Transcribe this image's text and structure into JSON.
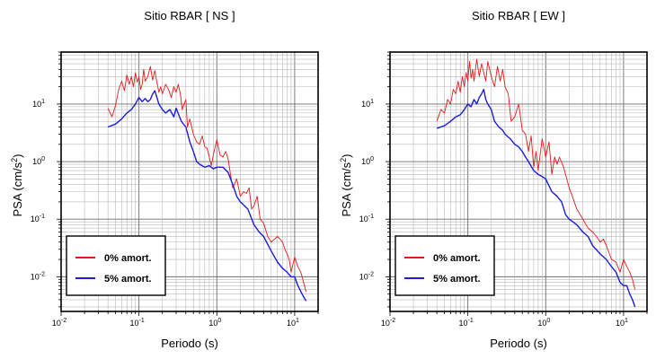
{
  "chart_data": [
    {
      "type": "line",
      "title": "Sitio RBAR [ NS ]",
      "xlabel": "Periodo (s)",
      "ylabel": "PSA (cm/s",
      "ylabel_sup": "2",
      "ylabel_close": ")",
      "xscale": "log",
      "yscale": "log",
      "xlim": [
        0.01,
        20
      ],
      "ylim": [
        0.0025,
        80
      ],
      "grid": true,
      "legend_position": "bottom-left",
      "xticks": [
        {
          "base": "10",
          "exp": "-2",
          "value": 0.01
        },
        {
          "base": "10",
          "exp": "-1",
          "value": 0.1
        },
        {
          "base": "10",
          "exp": "0",
          "value": 1
        },
        {
          "base": "10",
          "exp": "1",
          "value": 10
        }
      ],
      "yticks": [
        {
          "base": "10",
          "exp": "-2",
          "value": 0.01
        },
        {
          "base": "10",
          "exp": "-1",
          "value": 0.1
        },
        {
          "base": "10",
          "exp": "0",
          "value": 1
        },
        {
          "base": "10",
          "exp": "1",
          "value": 10
        }
      ],
      "series": [
        {
          "name": "0% amort.",
          "color": "#e8191b",
          "x": [
            0.04,
            0.045,
            0.05,
            0.055,
            0.06,
            0.065,
            0.07,
            0.075,
            0.08,
            0.085,
            0.09,
            0.095,
            0.1,
            0.105,
            0.11,
            0.115,
            0.12,
            0.13,
            0.14,
            0.15,
            0.16,
            0.17,
            0.18,
            0.19,
            0.2,
            0.22,
            0.24,
            0.26,
            0.28,
            0.3,
            0.32,
            0.34,
            0.36,
            0.38,
            0.4,
            0.42,
            0.45,
            0.5,
            0.55,
            0.6,
            0.65,
            0.7,
            0.75,
            0.8,
            0.85,
            0.9,
            1.0,
            1.1,
            1.2,
            1.3,
            1.4,
            1.5,
            1.6,
            1.8,
            2.0,
            2.2,
            2.4,
            2.6,
            2.8,
            3.0,
            3.3,
            3.6,
            4.0,
            4.5,
            5.0,
            5.5,
            6.0,
            6.5,
            7.0,
            7.5,
            8.0,
            8.5,
            9.0,
            10.0,
            11.0,
            12.0,
            13.0,
            14.0
          ],
          "y": [
            8.5,
            6.0,
            9.5,
            18.0,
            25.0,
            17.0,
            32.0,
            22.0,
            30.0,
            20.0,
            35.0,
            24.0,
            30.0,
            18.0,
            22.0,
            40.0,
            25.0,
            30.0,
            45.0,
            26.0,
            38.0,
            24.0,
            16.0,
            20.0,
            15.0,
            22.0,
            18.0,
            13.0,
            20.0,
            16.0,
            22.0,
            15.0,
            8.0,
            10.0,
            12.0,
            4.0,
            5.5,
            3.0,
            2.2,
            2.0,
            2.8,
            1.8,
            1.7,
            1.2,
            0.85,
            1.3,
            2.4,
            1.3,
            1.2,
            1.5,
            1.1,
            0.6,
            0.35,
            0.5,
            0.25,
            0.3,
            0.28,
            0.35,
            0.15,
            0.17,
            0.25,
            0.1,
            0.085,
            0.05,
            0.04,
            0.045,
            0.05,
            0.045,
            0.04,
            0.03,
            0.025,
            0.02,
            0.012,
            0.022,
            0.015,
            0.012,
            0.008,
            0.0055
          ]
        },
        {
          "name": "5% amort.",
          "color": "#1c1cdb",
          "x": [
            0.04,
            0.05,
            0.06,
            0.07,
            0.08,
            0.09,
            0.1,
            0.11,
            0.12,
            0.13,
            0.14,
            0.15,
            0.16,
            0.17,
            0.18,
            0.2,
            0.22,
            0.25,
            0.28,
            0.3,
            0.35,
            0.4,
            0.45,
            0.5,
            0.55,
            0.6,
            0.7,
            0.8,
            0.9,
            1.0,
            1.2,
            1.4,
            1.6,
            1.8,
            2.0,
            2.5,
            3.0,
            3.5,
            4.0,
            5.0,
            6.0,
            7.0,
            8.0,
            9.0,
            10.0,
            11.0,
            12.0,
            13.0,
            14.0
          ],
          "y": [
            4.0,
            4.5,
            5.5,
            7.0,
            8.0,
            10.0,
            13.0,
            11.0,
            12.5,
            11.0,
            12.0,
            15.0,
            17.0,
            13.0,
            10.0,
            8.0,
            7.0,
            8.0,
            6.0,
            8.5,
            5.0,
            4.0,
            2.2,
            1.5,
            1.0,
            0.9,
            0.8,
            0.85,
            0.75,
            0.8,
            0.8,
            0.65,
            0.4,
            0.25,
            0.2,
            0.15,
            0.08,
            0.06,
            0.05,
            0.028,
            0.018,
            0.014,
            0.012,
            0.01,
            0.01,
            0.007,
            0.0055,
            0.0045,
            0.0038
          ]
        }
      ]
    },
    {
      "type": "line",
      "title": "Sitio RBAR [ EW ]",
      "xlabel": "Periodo (s)",
      "ylabel": "PSA (cm/s",
      "ylabel_sup": "2",
      "ylabel_close": ")",
      "xscale": "log",
      "yscale": "log",
      "xlim": [
        0.01,
        20
      ],
      "ylim": [
        0.0025,
        80
      ],
      "grid": true,
      "legend_position": "bottom-left",
      "xticks": [
        {
          "base": "10",
          "exp": "-2",
          "value": 0.01
        },
        {
          "base": "10",
          "exp": "-1",
          "value": 0.1
        },
        {
          "base": "10",
          "exp": "0",
          "value": 1
        },
        {
          "base": "10",
          "exp": "1",
          "value": 10
        }
      ],
      "yticks": [
        {
          "base": "10",
          "exp": "-2",
          "value": 0.01
        },
        {
          "base": "10",
          "exp": "-1",
          "value": 0.1
        },
        {
          "base": "10",
          "exp": "0",
          "value": 1
        },
        {
          "base": "10",
          "exp": "1",
          "value": 10
        }
      ],
      "series": [
        {
          "name": "0% amort.",
          "color": "#e8191b",
          "x": [
            0.04,
            0.045,
            0.05,
            0.055,
            0.06,
            0.065,
            0.07,
            0.075,
            0.08,
            0.085,
            0.09,
            0.095,
            0.1,
            0.105,
            0.11,
            0.115,
            0.12,
            0.13,
            0.14,
            0.15,
            0.16,
            0.17,
            0.18,
            0.2,
            0.22,
            0.24,
            0.26,
            0.28,
            0.3,
            0.33,
            0.36,
            0.4,
            0.45,
            0.5,
            0.55,
            0.6,
            0.65,
            0.7,
            0.75,
            0.8,
            0.9,
            1.0,
            1.1,
            1.2,
            1.3,
            1.4,
            1.5,
            1.7,
            2.0,
            2.2,
            2.5,
            3.0,
            3.5,
            4.0,
            4.5,
            5.0,
            5.5,
            6.0,
            7.0,
            8.0,
            9.0,
            10.0,
            11.0,
            12.0,
            13.0,
            14.0
          ],
          "y": [
            5.0,
            8.0,
            7.0,
            12.0,
            10.0,
            18.0,
            15.0,
            25.0,
            16.0,
            30.0,
            20.0,
            35.0,
            25.0,
            55.0,
            28.0,
            40.0,
            25.0,
            60.0,
            30.0,
            50.0,
            35.0,
            25.0,
            55.0,
            30.0,
            20.0,
            45.0,
            25.0,
            40.0,
            20.0,
            15.0,
            5.0,
            6.0,
            10.0,
            3.5,
            3.0,
            1.5,
            2.8,
            0.8,
            1.5,
            0.7,
            2.5,
            1.2,
            2.2,
            0.6,
            1.2,
            0.9,
            1.2,
            0.8,
            0.35,
            0.25,
            0.15,
            0.1,
            0.07,
            0.06,
            0.05,
            0.04,
            0.045,
            0.035,
            0.02,
            0.018,
            0.012,
            0.02,
            0.015,
            0.012,
            0.009,
            0.006
          ]
        },
        {
          "name": "5% amort.",
          "color": "#1c1cdb",
          "x": [
            0.04,
            0.05,
            0.06,
            0.07,
            0.08,
            0.09,
            0.1,
            0.11,
            0.12,
            0.13,
            0.14,
            0.15,
            0.16,
            0.17,
            0.18,
            0.2,
            0.22,
            0.25,
            0.28,
            0.3,
            0.35,
            0.4,
            0.45,
            0.5,
            0.55,
            0.6,
            0.7,
            0.8,
            0.9,
            1.0,
            1.2,
            1.4,
            1.6,
            1.8,
            2.0,
            2.5,
            3.0,
            3.5,
            4.0,
            5.0,
            6.0,
            7.0,
            8.0,
            9.0,
            10.0,
            11.0,
            12.0,
            13.0,
            14.0
          ],
          "y": [
            3.8,
            4.2,
            5.0,
            6.0,
            6.5,
            8.0,
            10.0,
            9.0,
            12.0,
            10.0,
            13.0,
            15.0,
            18.0,
            12.0,
            10.0,
            8.0,
            5.0,
            4.0,
            3.5,
            3.0,
            2.5,
            2.0,
            1.8,
            1.5,
            1.2,
            1.0,
            0.7,
            0.6,
            0.55,
            0.5,
            0.3,
            0.25,
            0.2,
            0.12,
            0.1,
            0.08,
            0.06,
            0.05,
            0.035,
            0.025,
            0.02,
            0.015,
            0.012,
            0.008,
            0.007,
            0.007,
            0.005,
            0.004,
            0.003
          ]
        }
      ]
    }
  ]
}
